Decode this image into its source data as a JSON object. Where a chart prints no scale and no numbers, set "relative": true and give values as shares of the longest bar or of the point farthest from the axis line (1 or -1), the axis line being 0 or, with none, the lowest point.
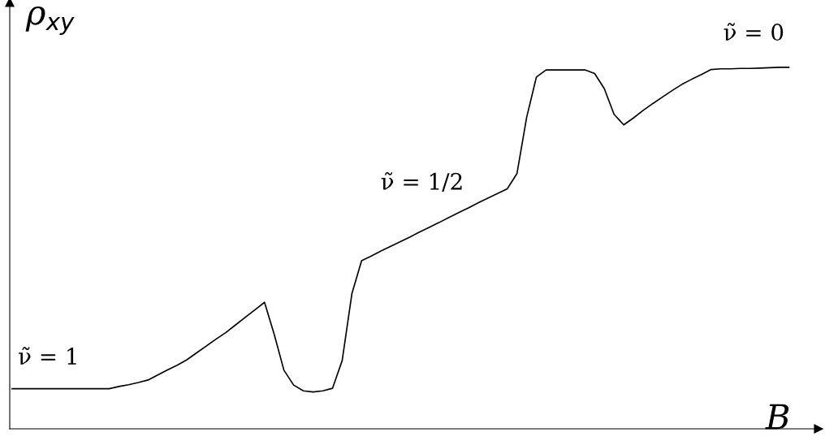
{
  "chart_data": {
    "type": "line",
    "relative": true,
    "xlabel": "B",
    "ylabel": "ρ$_{xy}$",
    "legend": false,
    "marker": "none",
    "line_style": "solid",
    "categories": [
      null,
      null,
      null,
      null,
      null,
      null,
      null,
      null,
      null,
      null,
      null,
      null,
      null,
      null,
      null,
      null,
      null,
      null,
      null,
      null,
      null,
      null,
      null,
      null,
      null,
      null,
      null,
      null,
      null,
      null,
      null,
      null,
      null,
      null,
      null,
      null,
      null,
      null,
      null,
      null,
      null,
      null,
      null,
      null,
      null,
      null,
      null,
      null,
      null,
      null,
      null,
      null,
      null,
      null,
      null,
      null,
      null,
      null,
      null,
      null,
      null,
      null,
      null,
      null,
      null,
      null,
      null,
      null,
      null,
      null,
      null,
      null,
      null,
      null,
      null,
      null,
      null,
      null,
      null,
      null,
      null
    ],
    "series": [
      {
        "color": "#000000",
        "values": [
          0.111,
          0.111,
          0.111,
          0.111,
          0.111,
          0.111,
          0.111,
          0.111,
          0.111,
          0.111,
          0.111,
          0.117,
          0.122,
          0.128,
          0.135,
          0.149,
          0.163,
          0.176,
          0.191,
          0.21,
          0.229,
          0.248,
          0.266,
          0.287,
          0.308,
          0.329,
          0.35,
          0.261,
          0.162,
          0.121,
          0.105,
          0.102,
          0.105,
          0.112,
          0.189,
          0.374,
          0.465,
          0.478,
          0.492,
          0.505,
          0.518,
          0.531,
          0.545,
          0.558,
          0.571,
          0.585,
          0.598,
          0.611,
          0.625,
          0.638,
          0.651,
          0.664,
          0.706,
          0.862,
          0.973,
          0.993,
          0.993,
          0.993,
          0.993,
          0.993,
          0.983,
          0.941,
          0.87,
          0.841,
          0.86,
          0.881,
          0.9,
          0.918,
          0.936,
          0.953,
          0.967,
          0.98,
          0.994,
          0.996,
          0.996,
          0.997,
          0.997,
          0.998,
          0.999,
          1.0,
          1.0
        ]
      }
    ],
    "annotations": [
      "ν̃ = 1",
      "ν̃ = 1/2",
      "ν̃ = 0"
    ]
  }
}
